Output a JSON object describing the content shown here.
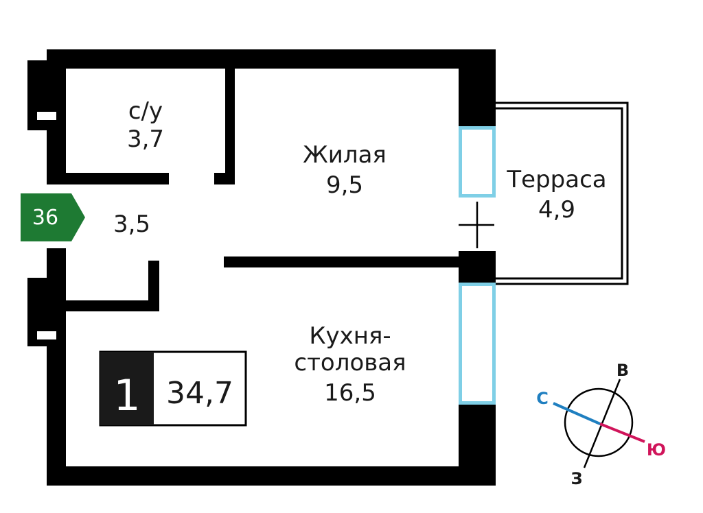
{
  "apartment": {
    "number": "36",
    "rooms_count": "1",
    "total_area": "34,7"
  },
  "rooms": {
    "bathroom": {
      "name": "с/у",
      "area": "3,7"
    },
    "hall": {
      "area": "3,5"
    },
    "living": {
      "name": "Жилая",
      "area": "9,5"
    },
    "terrace": {
      "name": "Терраса",
      "area": "4,9"
    },
    "kitchen": {
      "name_line1": "Кухня-",
      "name_line2": "столовая",
      "area": "16,5"
    }
  },
  "compass": {
    "north": "С",
    "south": "Ю",
    "east": "В",
    "west": "З"
  },
  "colors": {
    "wall": "#000000",
    "window": "#7fcfe6",
    "badge": "#1e7a33",
    "north": "#1f7fc0",
    "south": "#d0145a"
  }
}
